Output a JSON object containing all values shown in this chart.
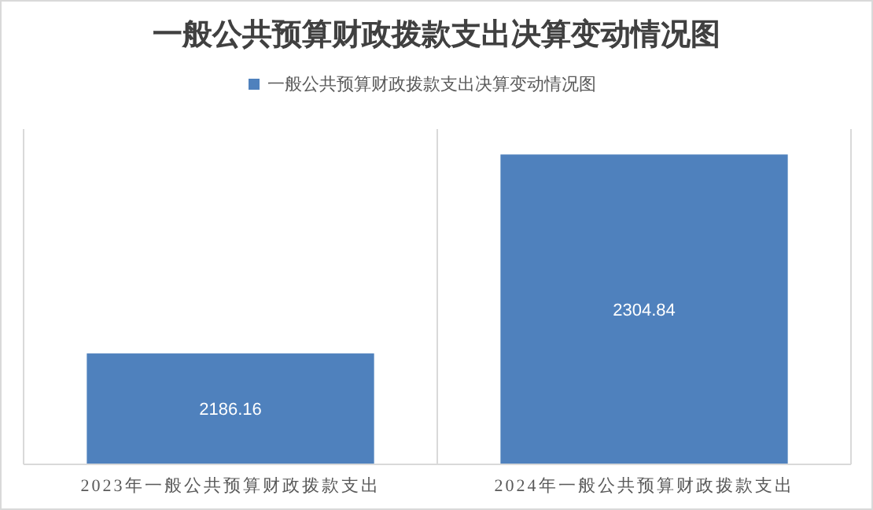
{
  "chart_data": {
    "type": "bar",
    "title": "一般公共预算财政拨款支出决算变动情况图",
    "categories": [
      "2023年一般公共预算财政拨款支出",
      "2024年一般公共预算财政拨款支出"
    ],
    "series": [
      {
        "name": "一般公共预算财政拨款支出决算变动情况图",
        "color": "#4f81bd",
        "values": [
          2186.16,
          2304.84
        ]
      }
    ],
    "ylim": [
      2120,
      2320
    ],
    "data_labels": true,
    "grid": "x",
    "legend": "top"
  }
}
